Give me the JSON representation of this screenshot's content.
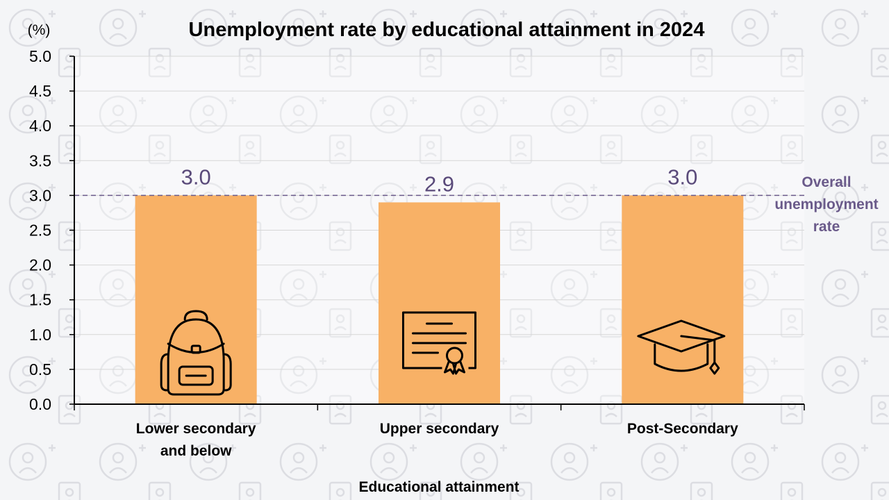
{
  "chart_data": {
    "type": "bar",
    "title": "Unemployment rate by educational attainment in 2024",
    "unit_label": "(%)",
    "xlabel": "Educational attainment",
    "ylabel": "",
    "ylim": [
      0,
      5
    ],
    "yticks": [
      "0.0",
      "0.5",
      "1.0",
      "1.5",
      "2.0",
      "2.5",
      "3.0",
      "3.5",
      "4.0",
      "4.5",
      "5.0"
    ],
    "categories": [
      [
        "Lower secondary",
        "and below"
      ],
      [
        "Upper secondary"
      ],
      [
        "Post-Secondary"
      ]
    ],
    "values": [
      3.0,
      2.9,
      3.0
    ],
    "data_labels": [
      "3.0",
      "2.9",
      "3.0"
    ],
    "bar_icons": [
      "backpack-icon",
      "certificate-icon",
      "graduation-cap-icon"
    ],
    "reference_line": {
      "value": 3.0,
      "label": [
        "Overall",
        "unemployment",
        "rate"
      ]
    },
    "grid": true,
    "colors": {
      "bar": "#f8b166",
      "label": "#5a4a7a",
      "reference": "#6a5a8a",
      "grid": "#d6d6d6",
      "axis": "#000000",
      "text": "#000000"
    }
  }
}
